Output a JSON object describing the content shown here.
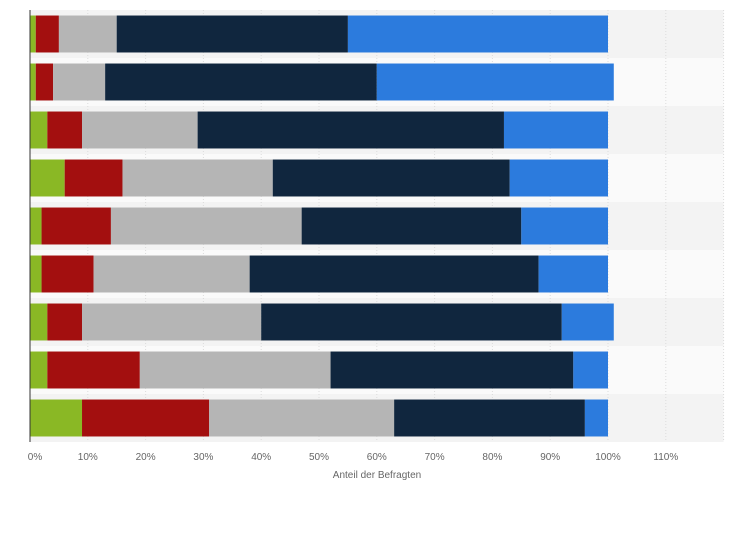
{
  "chart_data": {
    "type": "bar",
    "orientation": "horizontal",
    "stacked": true,
    "xlabel": "Anteil der Befragten",
    "xlim": [
      0,
      120
    ],
    "x_ticks": [
      "0%",
      "10%",
      "20%",
      "30%",
      "40%",
      "50%",
      "60%",
      "70%",
      "80%",
      "90%",
      "100%",
      "110%"
    ],
    "x_tick_values": [
      0,
      10,
      20,
      30,
      40,
      50,
      60,
      70,
      80,
      90,
      100,
      110
    ],
    "grid": true,
    "legend": "none",
    "series": [
      {
        "color": "#8ab825",
        "values": [
          1,
          1,
          3,
          6,
          2,
          2,
          3,
          3,
          9
        ]
      },
      {
        "color": "#a30f0f",
        "values": [
          4,
          3,
          6,
          10,
          12,
          9,
          6,
          16,
          22
        ]
      },
      {
        "color": "#b5b5b5",
        "values": [
          10,
          9,
          20,
          26,
          33,
          27,
          31,
          33,
          32
        ]
      },
      {
        "color": "#10263e",
        "values": [
          40,
          47,
          53,
          41,
          38,
          50,
          52,
          42,
          33
        ]
      },
      {
        "color": "#2c7bdd",
        "values": [
          45,
          41,
          18,
          17,
          15,
          12,
          9,
          6,
          4
        ]
      }
    ]
  }
}
